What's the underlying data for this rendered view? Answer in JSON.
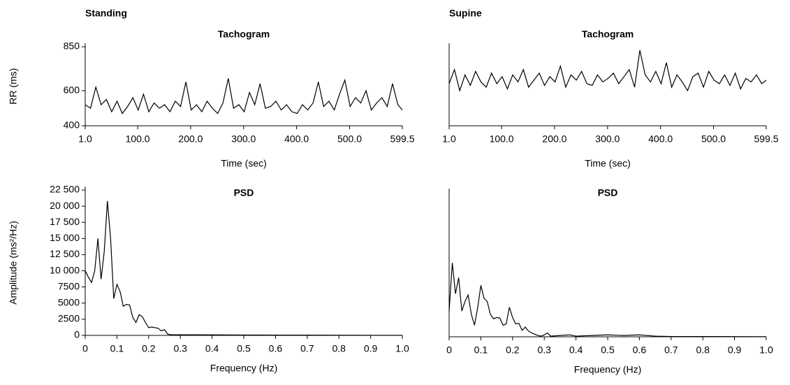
{
  "chart_data": [
    {
      "type": "line",
      "panel_label": "Standing",
      "title": "Tachogram",
      "ylabel": "RR (ms)",
      "xlabel": "Time (sec)",
      "color": "#000000",
      "xlim": [
        1,
        599.5
      ],
      "xticks": [
        {
          "value": 1,
          "label": "1.0"
        },
        {
          "value": 100,
          "label": "100.0"
        },
        {
          "value": 200,
          "label": "200.0"
        },
        {
          "value": 300,
          "label": "300.0"
        },
        {
          "value": 400,
          "label": "400.0"
        },
        {
          "value": 500,
          "label": "500.0"
        },
        599.5
      ],
      "ylim": [
        400,
        850
      ],
      "yticks": [
        400,
        600,
        850
      ],
      "x": [
        1,
        11,
        21,
        31,
        41,
        51,
        61,
        71,
        81,
        91,
        101,
        111,
        121,
        131,
        141,
        151,
        161,
        171,
        181,
        191,
        201,
        211,
        221,
        231,
        241,
        251,
        261,
        271,
        281,
        291,
        301,
        311,
        321,
        331,
        341,
        351,
        361,
        371,
        381,
        391,
        401,
        411,
        421,
        431,
        441,
        451,
        461,
        471,
        481,
        491,
        501,
        511,
        521,
        531,
        541,
        551,
        561,
        571,
        581,
        591,
        599.5
      ],
      "values": [
        520,
        500,
        620,
        520,
        550,
        480,
        540,
        470,
        510,
        560,
        490,
        580,
        480,
        530,
        500,
        520,
        480,
        540,
        510,
        650,
        490,
        520,
        480,
        540,
        500,
        470,
        530,
        670,
        500,
        520,
        480,
        590,
        520,
        640,
        500,
        510,
        540,
        490,
        520,
        480,
        470,
        520,
        490,
        530,
        650,
        510,
        540,
        490,
        580,
        660,
        510,
        560,
        530,
        600,
        490,
        530,
        560,
        510,
        640,
        520,
        490
      ]
    },
    {
      "type": "line",
      "panel_label": "Supine",
      "title": "Tachogram",
      "xlabel": "Time (sec)",
      "color": "#000000",
      "xlim": [
        1,
        599.5
      ],
      "xticks": [
        {
          "value": 1,
          "label": "1.0"
        },
        {
          "value": 100,
          "label": "100.0"
        },
        {
          "value": 200,
          "label": "200.0"
        },
        {
          "value": 300,
          "label": "300.0"
        },
        {
          "value": 400,
          "label": "400.0"
        },
        {
          "value": 500,
          "label": "500.0"
        },
        599.5
      ],
      "ylim": [
        400,
        850
      ],
      "x": [
        1,
        11,
        21,
        31,
        41,
        51,
        61,
        71,
        81,
        91,
        101,
        111,
        121,
        131,
        141,
        151,
        161,
        171,
        181,
        191,
        201,
        211,
        221,
        231,
        241,
        251,
        261,
        271,
        281,
        291,
        301,
        311,
        321,
        331,
        341,
        351,
        361,
        371,
        381,
        391,
        401,
        411,
        421,
        431,
        441,
        451,
        461,
        471,
        481,
        491,
        501,
        511,
        521,
        531,
        541,
        551,
        561,
        571,
        581,
        591,
        599.5
      ],
      "values": [
        640,
        720,
        600,
        690,
        630,
        710,
        650,
        620,
        700,
        640,
        680,
        610,
        690,
        650,
        720,
        620,
        660,
        700,
        630,
        680,
        650,
        740,
        620,
        690,
        660,
        710,
        640,
        630,
        690,
        650,
        670,
        700,
        640,
        680,
        720,
        620,
        830,
        690,
        650,
        710,
        640,
        760,
        620,
        690,
        650,
        600,
        680,
        700,
        620,
        710,
        660,
        640,
        690,
        630,
        700,
        610,
        670,
        650,
        690,
        640,
        660
      ]
    },
    {
      "type": "line",
      "title": "PSD",
      "ylabel": "Amplitude (ms²/Hz)",
      "xlabel": "Frequency (Hz)",
      "color": "#000000",
      "xlim": [
        0,
        1
      ],
      "xticks": [
        0,
        0.1,
        0.2,
        0.3,
        0.4,
        0.5,
        0.6,
        0.7,
        0.8,
        0.9,
        {
          "value": 1,
          "label": "1.0"
        }
      ],
      "ylim": [
        0,
        22500
      ],
      "yticks": [
        0,
        2500,
        5000,
        7500,
        {
          "value": 10000,
          "label": "10 000"
        },
        {
          "value": 12500,
          "label": "12 500"
        },
        {
          "value": 15000,
          "label": "15 000"
        },
        {
          "value": 17500,
          "label": "17 500"
        },
        {
          "value": 20000,
          "label": "20 000"
        },
        {
          "value": 22500,
          "label": "22 500"
        }
      ],
      "x": [
        0,
        0.01,
        0.02,
        0.03,
        0.04,
        0.05,
        0.06,
        0.07,
        0.08,
        0.09,
        0.1,
        0.11,
        0.12,
        0.13,
        0.14,
        0.15,
        0.16,
        0.17,
        0.18,
        0.19,
        0.2,
        0.21,
        0.22,
        0.23,
        0.24,
        0.25,
        0.26,
        0.27,
        0.28,
        0.29,
        0.3,
        0.4,
        0.5,
        0.6,
        0.7,
        0.8,
        0.9,
        1
      ],
      "values": [
        10000,
        9000,
        8200,
        10000,
        15000,
        8700,
        13000,
        20800,
        15000,
        5700,
        7900,
        6800,
        4500,
        4800,
        4700,
        2800,
        2000,
        3200,
        2900,
        2000,
        1200,
        1300,
        1200,
        1100,
        700,
        900,
        200,
        100,
        100,
        100,
        100,
        80,
        60,
        50,
        40,
        30,
        20,
        10
      ]
    },
    {
      "type": "line",
      "title": "PSD",
      "xlabel": "Frequency (Hz)",
      "color": "#000000",
      "xlim": [
        0,
        1
      ],
      "xticks": [
        0,
        0.1,
        0.2,
        0.3,
        0.4,
        0.5,
        0.6,
        0.7,
        0.8,
        0.9,
        {
          "value": 1,
          "label": "1.0"
        }
      ],
      "ylim": [
        0,
        22500
      ],
      "x": [
        0,
        0.01,
        0.02,
        0.03,
        0.04,
        0.05,
        0.06,
        0.07,
        0.08,
        0.09,
        0.1,
        0.11,
        0.12,
        0.13,
        0.14,
        0.15,
        0.16,
        0.17,
        0.18,
        0.19,
        0.2,
        0.21,
        0.22,
        0.23,
        0.24,
        0.25,
        0.26,
        0.27,
        0.28,
        0.29,
        0.3,
        0.31,
        0.32,
        0.35,
        0.38,
        0.4,
        0.45,
        0.5,
        0.55,
        0.6,
        0.65,
        0.7,
        0.8,
        0.9,
        1
      ],
      "values": [
        4000,
        11500,
        6700,
        9200,
        4000,
        5500,
        6500,
        3500,
        1800,
        4500,
        8000,
        6000,
        5500,
        3500,
        2800,
        3000,
        2900,
        1800,
        2000,
        4600,
        3000,
        2000,
        2100,
        1000,
        1500,
        900,
        600,
        400,
        200,
        100,
        300,
        600,
        100,
        200,
        300,
        100,
        200,
        300,
        200,
        300,
        100,
        50,
        50,
        30,
        20
      ]
    }
  ]
}
